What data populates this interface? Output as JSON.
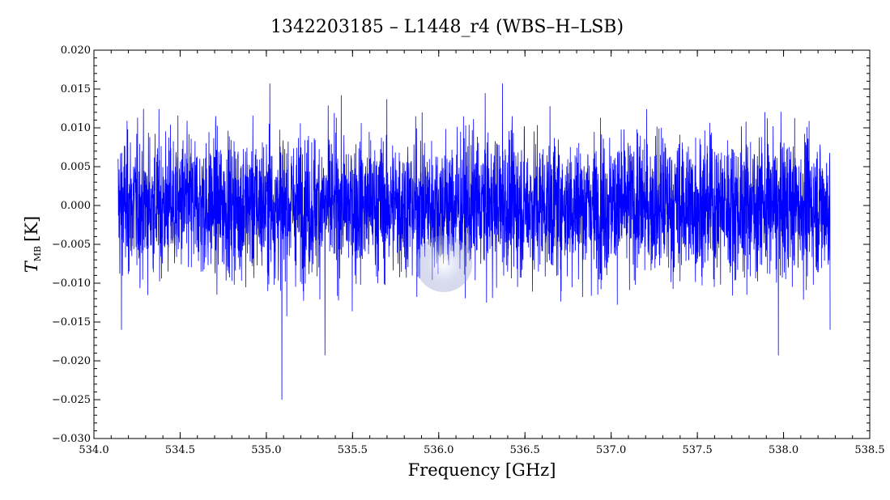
{
  "chart_data": {
    "type": "line",
    "title": "1342203185 – L1448_r4 (WBS–H–LSB)",
    "xlabel": "Frequency [GHz]",
    "ylabel": {
      "symbol": "T",
      "subscript": "MB",
      "unit": "[K]"
    },
    "xlim": [
      534.0,
      538.5
    ],
    "ylim": [
      -0.03,
      0.02
    ],
    "xticks": [
      534.0,
      534.5,
      535.0,
      535.5,
      536.0,
      536.5,
      537.0,
      537.5,
      538.0,
      538.5
    ],
    "xtick_labels": [
      "534.0",
      "534.5",
      "535.0",
      "535.5",
      "536.0",
      "536.5",
      "537.0",
      "537.5",
      "538.0",
      "538.5"
    ],
    "yticks": [
      -0.03,
      -0.025,
      -0.02,
      -0.015,
      -0.01,
      -0.005,
      0.0,
      0.005,
      0.01,
      0.015,
      0.02
    ],
    "ytick_labels": [
      "−0.030",
      "−0.025",
      "−0.020",
      "−0.015",
      "−0.010",
      "−0.005",
      "0.000",
      "0.005",
      "0.010",
      "0.015",
      "0.020"
    ],
    "grid": false,
    "legend": "none",
    "series_color": "#0000ff",
    "series": [
      {
        "x_range": [
          534.14,
          538.27
        ],
        "noise_rms": 0.0045,
        "notable_points": [
          {
            "x": 534.16,
            "y": -0.016
          },
          {
            "x": 535.02,
            "y": 0.0157
          },
          {
            "x": 535.09,
            "y": -0.025
          },
          {
            "x": 535.34,
            "y": -0.0193
          },
          {
            "x": 536.37,
            "y": 0.0157
          },
          {
            "x": 537.97,
            "y": -0.0193
          },
          {
            "x": 538.27,
            "y": -0.016
          }
        ]
      }
    ]
  }
}
